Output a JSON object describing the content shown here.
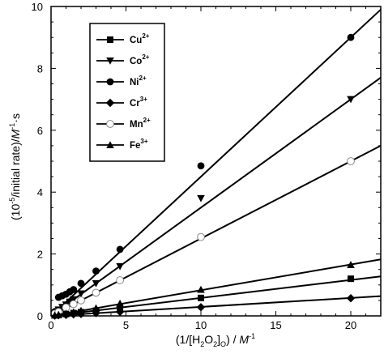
{
  "chart_data": {
    "type": "scatter",
    "xlim": [
      0,
      22
    ],
    "ylim": [
      0,
      10
    ],
    "x_ticks": [
      "0",
      "5",
      "10",
      "15",
      "20"
    ],
    "y_ticks": [
      "0",
      "2",
      "4",
      "6",
      "8",
      "10"
    ],
    "xlabel": {
      "pre": "(1/[H",
      "s1": "2",
      "mid": "O",
      "s2": "2",
      "post": "]",
      "s3": "O",
      "tail": ") / ",
      "unit": "M",
      "exp": "-1"
    },
    "ylabel": {
      "pre": "(10",
      "exp1": "-5",
      "mid": "/initial rate)/",
      "unit": "M",
      "exp2": "-1",
      "tail": "·s"
    },
    "grid": false,
    "legend_position": "top-left",
    "series": [
      {
        "name": "Cu",
        "charge": "2+",
        "marker": "square-filled",
        "line_slope": 0.058,
        "points": [
          [
            0.25,
            0.02
          ],
          [
            0.5,
            0.03
          ],
          [
            1,
            0.06
          ],
          [
            1.5,
            0.09
          ],
          [
            2,
            0.12
          ],
          [
            3,
            0.17
          ],
          [
            4.6,
            0.27
          ],
          [
            10,
            0.58
          ],
          [
            20,
            1.2
          ]
        ]
      },
      {
        "name": "Co",
        "charge": "2+",
        "marker": "triangle-down-filled",
        "line_slope": 0.35,
        "points": [
          [
            0.25,
            0.09
          ],
          [
            0.5,
            0.2
          ],
          [
            0.75,
            0.28
          ],
          [
            1,
            0.36
          ],
          [
            1.25,
            0.45
          ],
          [
            1.5,
            0.53
          ],
          [
            2,
            0.72
          ],
          [
            3,
            1.05
          ],
          [
            4.6,
            1.6
          ],
          [
            10,
            3.8
          ],
          [
            20,
            7.0
          ]
        ]
      },
      {
        "name": "Ni",
        "charge": "2+",
        "marker": "circle-filled",
        "line_slope": 0.45,
        "points": [
          [
            0.25,
            0.14
          ],
          [
            0.5,
            0.6
          ],
          [
            0.75,
            0.65
          ],
          [
            1,
            0.7
          ],
          [
            1.25,
            0.78
          ],
          [
            1.5,
            0.85
          ],
          [
            2,
            1.05
          ],
          [
            3,
            1.45
          ],
          [
            4.6,
            2.15
          ],
          [
            10,
            4.85
          ],
          [
            20,
            9.0
          ]
        ]
      },
      {
        "name": "Cr",
        "charge": "3+",
        "marker": "diamond-filled",
        "line_slope": 0.029,
        "points": [
          [
            0.25,
            0.01
          ],
          [
            0.5,
            0.02
          ],
          [
            1,
            0.03
          ],
          [
            1.5,
            0.05
          ],
          [
            2,
            0.06
          ],
          [
            3,
            0.09
          ],
          [
            4.6,
            0.13
          ],
          [
            10,
            0.28
          ],
          [
            20,
            0.57
          ]
        ]
      },
      {
        "name": "Mn",
        "charge": "2+",
        "marker": "circle-open",
        "line_slope": 0.25,
        "points": [
          [
            0.25,
            0.07
          ],
          [
            0.5,
            0.13
          ],
          [
            1,
            0.27
          ],
          [
            1.5,
            0.38
          ],
          [
            2,
            0.5
          ],
          [
            3,
            0.75
          ],
          [
            4.6,
            1.15
          ],
          [
            10,
            2.55
          ],
          [
            20,
            5.0
          ]
        ]
      },
      {
        "name": "Fe",
        "charge": "3+",
        "marker": "triangle-up-filled",
        "line_slope": 0.083,
        "points": [
          [
            0.25,
            0.02
          ],
          [
            0.5,
            0.04
          ],
          [
            1,
            0.08
          ],
          [
            1.5,
            0.12
          ],
          [
            2,
            0.17
          ],
          [
            3,
            0.25
          ],
          [
            4.6,
            0.4
          ],
          [
            10,
            0.85
          ],
          [
            20,
            1.65
          ]
        ]
      }
    ]
  }
}
